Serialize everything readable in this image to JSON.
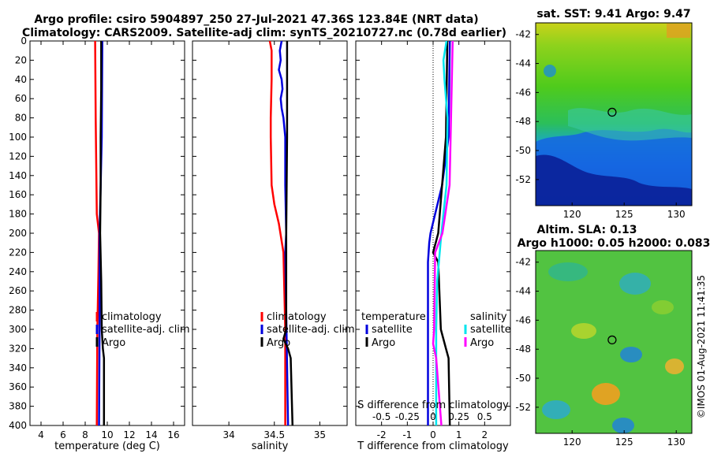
{
  "figure": {
    "title_line1": "Argo profile: csiro 5904897_250 27-Jul-2021 47.36S 123.84E (NRT data)",
    "title_line2": "Climatology: CARS2009. Satellite-adj clim: synTS_20210727.nc (0.78d earlier)",
    "watermark": "©IMOS 01-Aug-2021 11:41:35"
  },
  "colors": {
    "climatology": "#ff0000",
    "satellite": "#0000dd",
    "argo": "#000000",
    "satellite_salinity": "#00e5ee",
    "argo_salinity": "#ff00ff"
  },
  "chart_data": [
    {
      "type": "line",
      "name": "temperature",
      "xlabel": "temperature (deg C)",
      "ylabel": "",
      "xlim": [
        3,
        17
      ],
      "ylim": [
        400,
        0
      ],
      "xticks": [
        4,
        6,
        8,
        10,
        12,
        14,
        16
      ],
      "yticks": [
        0,
        20,
        40,
        60,
        80,
        100,
        120,
        140,
        160,
        180,
        200,
        220,
        240,
        260,
        280,
        300,
        320,
        340,
        360,
        380,
        400
      ],
      "legend": [
        "climatology",
        "satellite-adj. clim",
        "Argo"
      ],
      "series": [
        {
          "name": "climatology",
          "depth": [
            0,
            80,
            180,
            200,
            240,
            300,
            400
          ],
          "values": [
            8.9,
            8.95,
            9.05,
            9.25,
            9.2,
            9.1,
            9.05
          ]
        },
        {
          "name": "satellite-adj. clim",
          "depth": [
            0,
            100,
            200,
            300,
            400
          ],
          "values": [
            9.55,
            9.5,
            9.3,
            9.3,
            9.25
          ]
        },
        {
          "name": "Argo",
          "depth": [
            0,
            50,
            100,
            150,
            200,
            250,
            300,
            320,
            330,
            400
          ],
          "values": [
            9.45,
            9.45,
            9.4,
            9.4,
            9.35,
            9.45,
            9.5,
            9.6,
            9.7,
            9.7
          ]
        }
      ]
    },
    {
      "type": "line",
      "name": "salinity",
      "xlabel": "salinity",
      "ylabel": "",
      "xlim": [
        33.6,
        35.3
      ],
      "ylim": [
        400,
        0
      ],
      "xticks": [
        34,
        34.5,
        35
      ],
      "xticklabels": [
        "34",
        "34.5",
        "35"
      ],
      "legend": [
        "climatology",
        "satellite-adj. clim",
        "Argo"
      ],
      "series": [
        {
          "name": "climatology",
          "depth": [
            0,
            10,
            40,
            80,
            100,
            150,
            170,
            190,
            220,
            300,
            400
          ],
          "values": [
            34.45,
            34.47,
            34.47,
            34.46,
            34.46,
            34.47,
            34.5,
            34.55,
            34.6,
            34.62,
            34.62
          ]
        },
        {
          "name": "satellite-adj. clim",
          "depth": [
            0,
            10,
            20,
            30,
            40,
            50,
            60,
            70,
            80,
            100,
            150,
            200,
            220,
            400
          ],
          "values": [
            34.58,
            34.56,
            34.57,
            34.55,
            34.58,
            34.59,
            34.57,
            34.58,
            34.6,
            34.62,
            34.62,
            34.63,
            34.62,
            34.65
          ]
        },
        {
          "name": "Argo",
          "depth": [
            0,
            100,
            200,
            300,
            310,
            320,
            330,
            400
          ],
          "values": [
            34.64,
            34.64,
            34.63,
            34.63,
            34.6,
            34.65,
            34.68,
            34.7
          ]
        }
      ]
    },
    {
      "type": "line",
      "name": "difference",
      "xlabel": "T difference from climatology",
      "xlabel_top": "S difference from climatology",
      "xlim": [
        -3,
        3
      ],
      "ylim": [
        400,
        0
      ],
      "xticks": [
        -2,
        -1,
        0,
        1,
        2
      ],
      "xticklabels": [
        "-2",
        "-1",
        "0",
        "1",
        "2"
      ],
      "s_xticklabels": [
        "-0.5",
        "-0.25",
        "0",
        "0.25",
        "0.5"
      ],
      "s_xlim": [
        -0.75,
        0.75
      ],
      "legend_temperature_title": "temperature",
      "legend_salinity_title": "salinity",
      "legend": [
        "satellite",
        "Argo",
        "satellite",
        "Argo"
      ],
      "series": [
        {
          "name": "temperature satellite",
          "depth": [
            0,
            100,
            150,
            200,
            210,
            230,
            400
          ],
          "values": [
            0.65,
            0.6,
            0.35,
            -0.1,
            -0.15,
            -0.2,
            -0.2
          ]
        },
        {
          "name": "temperature Argo",
          "depth": [
            0,
            100,
            200,
            220,
            230,
            300,
            320,
            330,
            400
          ],
          "values": [
            0.55,
            0.5,
            0.2,
            0.0,
            0.2,
            0.3,
            0.5,
            0.6,
            0.65
          ]
        },
        {
          "name": "salinity satellite",
          "depth": [
            0,
            20,
            40,
            80,
            150,
            200,
            250,
            300,
            400
          ],
          "values": [
            0.13,
            0.1,
            0.11,
            0.14,
            0.13,
            0.08,
            0.04,
            0.03,
            0.03
          ]
        },
        {
          "name": "salinity Argo",
          "depth": [
            0,
            50,
            100,
            150,
            200,
            220,
            300,
            315,
            330,
            400
          ],
          "values": [
            0.19,
            0.18,
            0.17,
            0.16,
            0.09,
            0.02,
            0.01,
            0.0,
            0.03,
            0.08
          ]
        }
      ]
    },
    {
      "type": "heatmap",
      "name": "sat-sst-map",
      "title": "sat. SST: 9.41 Argo: 9.47",
      "xticks": [
        120,
        125,
        130
      ],
      "yticks": [
        -42,
        -44,
        -46,
        -48,
        -50,
        -52
      ],
      "xlim": [
        116.5,
        131.5
      ],
      "ylim": [
        -53.8,
        -41.2
      ],
      "marker": {
        "lon": 123.84,
        "lat": -47.36
      }
    },
    {
      "type": "heatmap",
      "name": "altimetry-map",
      "title_line1": "Altim. SLA: 0.13",
      "title_line2": "Argo h1000: 0.05 h2000: 0.083",
      "xticks": [
        120,
        125,
        130
      ],
      "yticks": [
        -42,
        -44,
        -46,
        -48,
        -50,
        -52
      ],
      "xlim": [
        116.5,
        131.5
      ],
      "ylim": [
        -53.8,
        -41.2
      ],
      "marker": {
        "lon": 123.84,
        "lat": -47.36
      }
    }
  ]
}
